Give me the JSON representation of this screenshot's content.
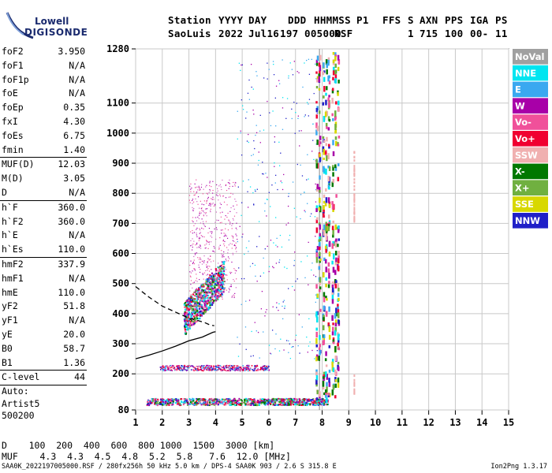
{
  "logo": {
    "line1": "Lowell",
    "line2": "DIGISONDE"
  },
  "header": {
    "row1": [
      "Station",
      "YYYY",
      "DAY",
      "DDD",
      "HHMMSS",
      "P1",
      "FFS",
      "S",
      "AXN",
      "PPS",
      "IGA",
      "PS"
    ],
    "row2": [
      "SaoLuis",
      "2022",
      "Jul16",
      "197",
      "005000",
      "RSF",
      "1",
      "715",
      "100",
      "00-",
      "11"
    ]
  },
  "params": [
    {
      "label": "foF2",
      "value": "3.950"
    },
    {
      "label": "foF1",
      "value": "N/A"
    },
    {
      "label": "foF1p",
      "value": "N/A"
    },
    {
      "label": "foE",
      "value": "N/A"
    },
    {
      "label": "foEp",
      "value": "0.35"
    },
    {
      "label": "fxI",
      "value": "4.30"
    },
    {
      "label": "foEs",
      "value": "6.75"
    },
    {
      "label": "fmin",
      "value": "1.40"
    },
    {
      "label": "MUF(D)",
      "value": "12.03"
    },
    {
      "label": "M(D)",
      "value": "3.05"
    },
    {
      "label": "D",
      "value": "N/A"
    },
    {
      "label": "h`F",
      "value": "360.0"
    },
    {
      "label": "h`F2",
      "value": "360.0"
    },
    {
      "label": "h`E",
      "value": "N/A"
    },
    {
      "label": "h`Es",
      "value": "110.0"
    },
    {
      "label": "hmF2",
      "value": "337.9"
    },
    {
      "label": "hmF1",
      "value": "N/A"
    },
    {
      "label": "hmE",
      "value": "110.0"
    },
    {
      "label": "yF2",
      "value": "51.8"
    },
    {
      "label": "yF1",
      "value": "N/A"
    },
    {
      "label": "yE",
      "value": "20.0"
    },
    {
      "label": "B0",
      "value": "58.7"
    },
    {
      "label": "B1",
      "value": "1.36"
    },
    {
      "label": "C-level",
      "value": "44"
    }
  ],
  "auto": {
    "line1": "Auto:",
    "line2": "Artist5",
    "line3": "500200"
  },
  "dmuf": {
    "d_label": "D",
    "d_values": [
      "100",
      "200",
      "400",
      "600",
      "800",
      "1000",
      "1500",
      "3000"
    ],
    "d_unit": "[km]",
    "muf_label": "MUF",
    "muf_values": [
      "4.3",
      "4.3",
      "4.5",
      "4.8",
      "5.2",
      "5.8",
      "7.6",
      "12.0"
    ],
    "muf_unit": "[MHz]"
  },
  "footer": {
    "left": "SAA0K_2022197005000.RSF / 280fx256h 50 kHz 5.0 km / DPS-4 SAA0K 903 / 2.6 S 315.8 E",
    "right": "Ion2Png 1.3.17"
  },
  "legend": [
    {
      "label": "NoVal",
      "color": "#a0a0a0"
    },
    {
      "label": "NNE",
      "color": "#00e5f0"
    },
    {
      "label": "E",
      "color": "#3aa8f0"
    },
    {
      "label": "W",
      "color": "#a800a8"
    },
    {
      "label": "Vo-",
      "color": "#f0509a"
    },
    {
      "label": "Vo+",
      "color": "#f00030"
    },
    {
      "label": "SSW",
      "color": "#f0b0b0"
    },
    {
      "label": "X-",
      "color": "#007800"
    },
    {
      "label": "X+",
      "color": "#70b040"
    },
    {
      "label": "SSE",
      "color": "#d8d800"
    },
    {
      "label": "NNW",
      "color": "#2020c8"
    }
  ],
  "chart_data": {
    "type": "scatter",
    "xlabel": "",
    "ylabel": "",
    "xlim": [
      1,
      15
    ],
    "ylim": [
      80,
      1280
    ],
    "x_ticks": [
      1,
      2,
      3,
      4,
      5,
      6,
      7,
      8,
      9,
      10,
      11,
      12,
      13,
      14,
      15
    ],
    "y_ticks": [
      80,
      200,
      300,
      400,
      500,
      600,
      700,
      800,
      900,
      1000,
      1100,
      1280
    ],
    "grid": true,
    "legend_position": "right",
    "profile_curve": {
      "freq_mhz": [
        1.0,
        1.5,
        2.0,
        2.5,
        3.0,
        3.5,
        3.9,
        4.0
      ],
      "height_km": [
        250,
        262,
        276,
        292,
        310,
        322,
        338,
        340
      ]
    },
    "dashed_trace": {
      "freq_mhz": [
        1.0,
        1.5,
        2.0,
        2.5,
        3.0,
        3.3,
        3.6,
        3.8,
        3.95
      ],
      "height_km": [
        490,
        455,
        425,
        405,
        385,
        378,
        370,
        362,
        360
      ]
    },
    "vertical_marker_mhz": 7.9,
    "series": [
      {
        "name": "Es trace (110 km)",
        "freq_range": [
          1.4,
          8.2
        ],
        "height_km": 110
      },
      {
        "name": "Es multiple (220 km)",
        "freq_range": [
          2.0,
          6.0
        ],
        "height_km": 220
      },
      {
        "name": "F layer",
        "freq_range": [
          2.8,
          4.3
        ],
        "height_range": [
          340,
          560
        ]
      },
      {
        "name": "F diffuse",
        "freq_range": [
          3.0,
          4.8
        ],
        "height_range": [
          450,
          860
        ]
      }
    ]
  }
}
